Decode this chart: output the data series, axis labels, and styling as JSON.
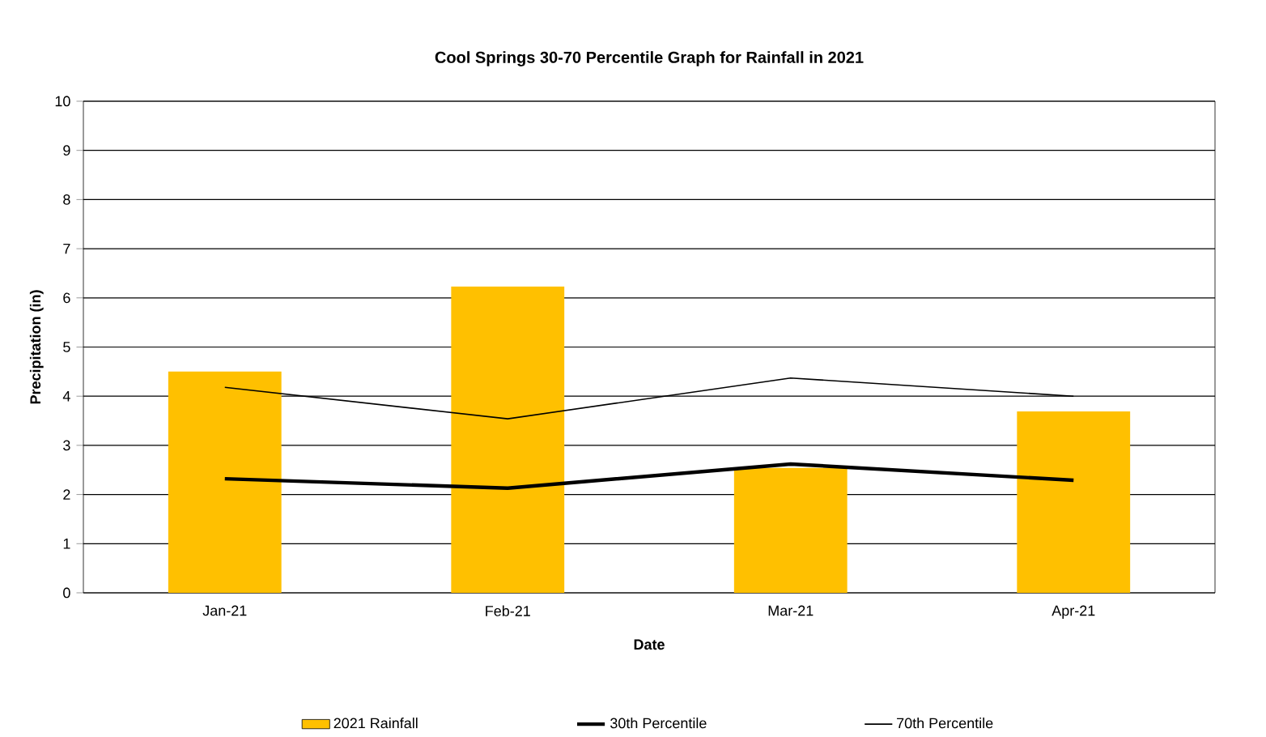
{
  "chart_data": {
    "type": "bar",
    "title": "Cool Springs 30-70 Percentile Graph for Rainfall in 2021",
    "xlabel": "Date",
    "ylabel": "Precipitation (in)",
    "categories": [
      "Jan-21",
      "Feb-21",
      "Mar-21",
      "Apr-21"
    ],
    "series": [
      {
        "name": "2021  Rainfall",
        "color": "#ffc000",
        "values": [
          4.5,
          6.23,
          2.54,
          3.69
        ]
      },
      {
        "name": "30th Percentile",
        "type": "line",
        "color": "#000000",
        "values": [
          2.32,
          2.13,
          2.62,
          2.29
        ]
      },
      {
        "name": "70th Percentile",
        "type": "line",
        "color": "#000000",
        "values": [
          4.18,
          3.54,
          4.37,
          4.0
        ]
      }
    ],
    "ylim": [
      0,
      10
    ],
    "yticks": [
      0,
      1,
      2,
      3,
      4,
      5,
      6,
      7,
      8,
      9,
      10
    ],
    "grid": "y",
    "legend": "bottom",
    "marker": "none"
  }
}
